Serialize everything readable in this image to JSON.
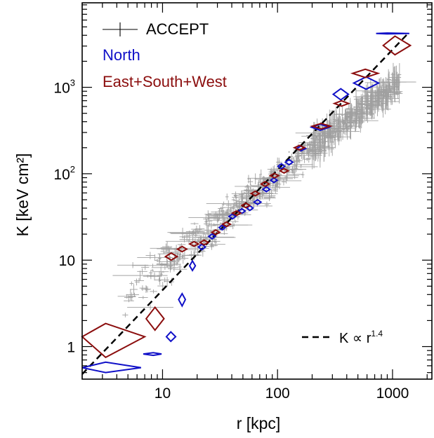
{
  "chart_data": {
    "type": "scatter",
    "xlabel": "r [kpc]",
    "ylabel": "K [keV cm²]",
    "xscale": "log",
    "yscale": "log",
    "xlim": [
      2,
      2200
    ],
    "ylim": [
      0.42,
      9500
    ],
    "x_ticks": [
      {
        "value": 10,
        "label": "10"
      },
      {
        "value": 100,
        "label": "100"
      },
      {
        "value": 1000,
        "label": "1000"
      }
    ],
    "y_ticks": [
      {
        "value": 1,
        "label": "1",
        "sup": ""
      },
      {
        "value": 10,
        "label": "10",
        "sup": ""
      },
      {
        "value": 100,
        "label": "10",
        "sup": "2"
      },
      {
        "value": 1000,
        "label": "10",
        "sup": "3"
      }
    ],
    "grid": false,
    "legend_position": "top-left",
    "colors": {
      "accept": "#a0a0a0",
      "north": "#1010c8",
      "esw": "#8b0d0d",
      "fit": "#000000"
    },
    "legend": {
      "accept": "ACCEPT",
      "north": "North",
      "esw": "East+South+West"
    },
    "fit_line": {
      "label_prefix": "K ∝ r",
      "label_exp": "1.4",
      "exponent": 1.4,
      "points": [
        [
          2,
          0.48
        ],
        [
          1400,
          4350
        ]
      ]
    },
    "series": [
      {
        "name": "North",
        "color_key": "north",
        "points": [
          {
            "x": 3.2,
            "y": 0.57,
            "xerr": [
              2.0,
              6.5
            ],
            "yerr": [
              0.5,
              0.66
            ]
          },
          {
            "x": 8.3,
            "y": 0.82,
            "xerr": [
              6.8,
              9.8
            ],
            "yerr": [
              0.79,
              0.85
            ]
          },
          {
            "x": 11.8,
            "y": 1.3,
            "xerr": [
              10.8,
              13.0
            ],
            "yerr": [
              1.15,
              1.48
            ]
          },
          {
            "x": 14.8,
            "y": 3.5,
            "xerr": [
              13.8,
              15.8
            ],
            "yerr": [
              2.95,
              4.1
            ]
          },
          {
            "x": 18.2,
            "y": 8.6,
            "xerr": [
              17.2,
              19.3
            ],
            "yerr": [
              7.6,
              9.8
            ]
          },
          {
            "x": 22.0,
            "y": 14.2,
            "xerr": [
              20.5,
              23.6
            ],
            "yerr": [
              13.2,
              15.3
            ]
          },
          {
            "x": 27.0,
            "y": 18.8,
            "xerr": [
              25.2,
              28.8
            ],
            "yerr": [
              17.6,
              20.1
            ]
          },
          {
            "x": 33.0,
            "y": 23.8,
            "xerr": [
              31.0,
              35.1
            ],
            "yerr": [
              22.4,
              25.3
            ]
          },
          {
            "x": 40.5,
            "y": 32.0,
            "xerr": [
              37.8,
              43.3
            ],
            "yerr": [
              30.0,
              34.2
            ]
          },
          {
            "x": 49.0,
            "y": 37.0,
            "xerr": [
              45.8,
              52.3
            ],
            "yerr": [
              34.8,
              39.4
            ]
          },
          {
            "x": 57.5,
            "y": 40.0,
            "xerr": [
              54.0,
              61.2
            ],
            "yerr": [
              37.6,
              42.6
            ]
          },
          {
            "x": 67.0,
            "y": 47.0,
            "xerr": [
              62.5,
              71.8
            ],
            "yerr": [
              44.2,
              50.0
            ]
          },
          {
            "x": 80.0,
            "y": 66.0,
            "xerr": [
              74.5,
              85.8
            ],
            "yerr": [
              62.0,
              70.3
            ]
          },
          {
            "x": 93.0,
            "y": 84.0,
            "xerr": [
              87.0,
              99.4
            ],
            "yerr": [
              79.0,
              89.3
            ]
          },
          {
            "x": 108.0,
            "y": 122.0,
            "xerr": [
              101.0,
              115.5
            ],
            "yerr": [
              114.0,
              130.5
            ]
          },
          {
            "x": 126.0,
            "y": 136.0,
            "xerr": [
              117.0,
              135.7
            ],
            "yerr": [
              127.0,
              145.6
            ]
          },
          {
            "x": 160.0,
            "y": 196.0,
            "xerr": [
              146.0,
              175.3
            ],
            "yerr": [
              184.0,
              208.8
            ]
          },
          {
            "x": 236.0,
            "y": 345.0,
            "xerr": [
              198.0,
              281.3
            ],
            "yerr": [
              318.0,
              374.3
            ]
          },
          {
            "x": 355.0,
            "y": 830.0,
            "xerr": [
              305.0,
              413.2
            ],
            "yerr": [
              715.0,
              963.5
            ]
          },
          {
            "x": 590.0,
            "y": 1120.0,
            "xerr": [
              460.0,
              756.7
            ],
            "yerr": [
              950.0,
              1320.4
            ]
          },
          {
            "x": 900.0,
            "y": 4200.0,
            "xerr": [
              720.0,
              1400.0
            ],
            "yerr": [
              4150.0,
              4250.0
            ]
          }
        ]
      },
      {
        "name": "East+South+West",
        "color_key": "esw",
        "points": [
          {
            "x": 3.2,
            "y": 1.3,
            "xerr": [
              2.0,
              7.0
            ],
            "yerr": [
              0.75,
              1.85
            ]
          },
          {
            "x": 8.6,
            "y": 2.1,
            "xerr": [
              7.2,
              10.3
            ],
            "yerr": [
              1.55,
              2.85
            ]
          },
          {
            "x": 11.9,
            "y": 11.0,
            "xerr": [
              10.6,
              13.4
            ],
            "yerr": [
              10.0,
              12.1
            ]
          },
          {
            "x": 14.8,
            "y": 13.4,
            "xerr": [
              13.5,
              16.2
            ],
            "yerr": [
              12.5,
              14.4
            ]
          },
          {
            "x": 18.8,
            "y": 15.4,
            "xerr": [
              17.2,
              20.5
            ],
            "yerr": [
              14.5,
              16.4
            ]
          },
          {
            "x": 23.0,
            "y": 16.0,
            "xerr": [
              21.2,
              25.0
            ],
            "yerr": [
              15.0,
              17.1
            ]
          },
          {
            "x": 29.0,
            "y": 21.0,
            "xerr": [
              26.8,
              31.4
            ],
            "yerr": [
              19.8,
              22.3
            ]
          },
          {
            "x": 36.0,
            "y": 26.0,
            "xerr": [
              33.3,
              38.9
            ],
            "yerr": [
              24.5,
              27.6
            ]
          },
          {
            "x": 44.0,
            "y": 35.0,
            "xerr": [
              40.5,
              47.8
            ],
            "yerr": [
              33.0,
              37.1
            ]
          },
          {
            "x": 53.0,
            "y": 43.0,
            "xerr": [
              49.0,
              57.3
            ],
            "yerr": [
              40.5,
              45.7
            ]
          },
          {
            "x": 64.0,
            "y": 59.0,
            "xerr": [
              59.0,
              69.4
            ],
            "yerr": [
              55.5,
              62.7
            ]
          },
          {
            "x": 78.0,
            "y": 76.0,
            "xerr": [
              72.0,
              84.5
            ],
            "yerr": [
              71.5,
              80.8
            ]
          },
          {
            "x": 94.0,
            "y": 95.0,
            "xerr": [
              86.5,
              102.2
            ],
            "yerr": [
              89.5,
              100.8
            ]
          },
          {
            "x": 114.0,
            "y": 108.0,
            "xerr": [
              105.0,
              123.8
            ],
            "yerr": [
              102.0,
              114.4
            ]
          },
          {
            "x": 155.0,
            "y": 200.0,
            "xerr": [
              140.0,
              171.6
            ],
            "yerr": [
              188.0,
              212.8
            ]
          },
          {
            "x": 240.0,
            "y": 355.0,
            "xerr": [
              200.0,
              288.0
            ],
            "yerr": [
              330.0,
              381.9
            ]
          },
          {
            "x": 360.0,
            "y": 650.0,
            "xerr": [
              312.0,
              415.4
            ],
            "yerr": [
              605.0,
              698.3
            ]
          },
          {
            "x": 580.0,
            "y": 1450.0,
            "xerr": [
              450.0,
              747.6
            ],
            "yerr": [
              1300.0,
              1617.3
            ]
          },
          {
            "x": 1050.0,
            "y": 3050.0,
            "xerr": [
              830.0,
              1430.0
            ],
            "yerr": [
              2380.0,
              3908.0
            ]
          }
        ]
      }
    ],
    "accept_cloud": {
      "description_key": "ACCEPT",
      "x_range": [
        4.5,
        1150
      ],
      "band_center_k_at_100kpc": 95,
      "note_count": 700
    }
  }
}
